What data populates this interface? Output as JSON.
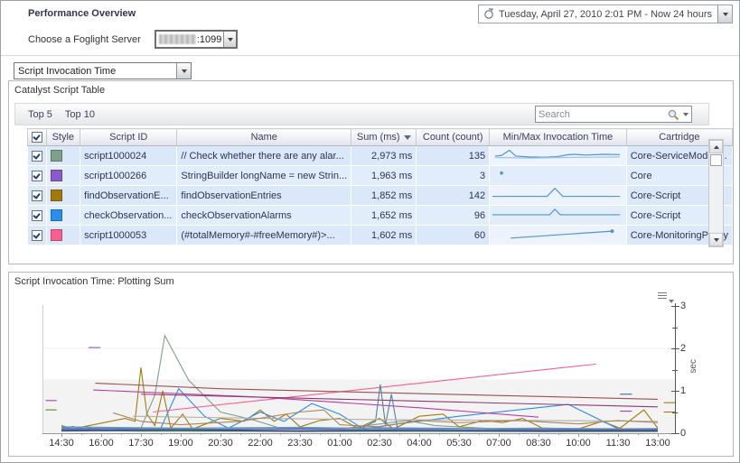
{
  "header": {
    "title": "Performance Overview",
    "time_range": "Tuesday, April 27, 2010 2:01 PM - Now 24 hours"
  },
  "server": {
    "label": "Choose a Foglight Server",
    "value_suffix": ":1099"
  },
  "metric_dropdown": {
    "value": "Script Invocation Time"
  },
  "catalyst": {
    "title": "Catalyst Script Table",
    "tabs": [
      {
        "label": "Top 5"
      },
      {
        "label": "Top 10"
      }
    ],
    "search_placeholder": "Search",
    "columns": [
      "Style",
      "Script ID",
      "Name",
      "Sum (ms)",
      "Count (count)",
      "Min/Max Invocation Time",
      "Cartridge"
    ],
    "sort_column": "Sum (ms)",
    "sort_direction": "descending",
    "spark_color": "#4f94d6",
    "rows": [
      {
        "checked": true,
        "style_color": "#7fa089",
        "script_id": "script1000024",
        "name": "// Check whether there are any alar...",
        "sum": "2,973 ms",
        "count": "135",
        "cartridge": "Core-ServiceModel-...",
        "sparklines": [
          {
            "points": [
              [
                2,
                62
              ],
              [
                7,
                58
              ],
              [
                13,
                22
              ],
              [
                18,
                62
              ],
              [
                28,
                68
              ],
              [
                40,
                70
              ],
              [
                50,
                66
              ],
              [
                57,
                54
              ],
              [
                63,
                50
              ],
              [
                72,
                55
              ],
              [
                85,
                50
              ],
              [
                98,
                52
              ]
            ]
          },
          {
            "color": "#9cc6ea",
            "points": [
              [
                2,
                72
              ],
              [
                30,
                76
              ],
              [
                55,
                72
              ],
              [
                75,
                70
              ],
              [
                98,
                68
              ]
            ]
          }
        ]
      },
      {
        "checked": true,
        "style_color": "#8a5bc8",
        "script_id": "script1000266",
        "name": "StringBuilder longName = new Strin...",
        "sum": "1,963 ms",
        "count": "3",
        "cartridge": "Core",
        "sparklines": [
          {
            "points": [
              [
                7,
                42
              ]
            ]
          }
        ]
      },
      {
        "checked": true,
        "style_color": "#a3790f",
        "script_id": "findObservationE...",
        "name": "findObservationEntries",
        "sum": "1,852 ms",
        "count": "142",
        "cartridge": "Core-Script",
        "sparklines": [
          {
            "points": [
              [
                0,
                66
              ],
              [
                42,
                66
              ],
              [
                48,
                10
              ],
              [
                54,
                66
              ],
              [
                98,
                66
              ]
            ]
          }
        ]
      },
      {
        "checked": true,
        "style_color": "#2a8ceb",
        "script_id": "checkObservation...",
        "name": "checkObservationAlarms",
        "sum": "1,652 ms",
        "count": "96",
        "cartridge": "Core-Script",
        "sparklines": [
          {
            "points": [
              [
                0,
                56
              ],
              [
                44,
                56
              ],
              [
                48,
                18
              ],
              [
                52,
                56
              ],
              [
                98,
                56
              ]
            ]
          }
        ]
      },
      {
        "checked": true,
        "style_color": "#f7608e",
        "script_id": "script1000053",
        "name": "(#totalMemory#-#freeMemory#)>...",
        "sum": "1,602 ms",
        "count": "60",
        "cartridge": "Core-MonitoringPolicy",
        "sparklines": [
          {
            "points": [
              [
                14,
                80
              ],
              [
                92,
                32
              ]
            ],
            "end_dot": true
          }
        ]
      }
    ]
  },
  "chart_panel": {
    "title": "Script Invocation Time: Plotting Sum"
  },
  "chart_data": {
    "type": "line",
    "title": "Script Invocation Time: Plotting Sum",
    "xlabel": "",
    "ylabel": "sec",
    "ylim": [
      0,
      3
    ],
    "y_ticks": [
      0,
      1,
      2,
      3
    ],
    "grid": true,
    "legend_position": "none",
    "threshold_band": {
      "from": 0,
      "to": 1.27,
      "color": "#f3f3f3"
    },
    "x_ticks": [
      "14:30",
      "16:00",
      "17:30",
      "19:00",
      "20:30",
      "22:00",
      "23:30",
      "01:00",
      "02:30",
      "04:00",
      "05:30",
      "07:00",
      "08:30",
      "10:00",
      "11:30",
      "13:00"
    ],
    "series": [
      {
        "name": "script1000024",
        "color": "#7fa089",
        "points": [
          [
            0,
            0.06
          ],
          [
            1,
            0.08
          ],
          [
            2,
            0.12
          ],
          [
            2.35,
            0.9
          ],
          [
            2.6,
            2.3
          ],
          [
            3.2,
            1.25
          ],
          [
            4,
            0.5
          ],
          [
            4.8,
            0.32
          ],
          [
            5.5,
            0.12
          ],
          [
            7,
            0.1
          ],
          [
            8.7,
            0.3
          ],
          [
            9.4,
            0.18
          ],
          [
            11,
            0.1
          ],
          [
            13,
            0.08
          ],
          [
            15,
            0.06
          ]
        ]
      },
      {
        "name": "findObservationEntries",
        "color": "#a3790f",
        "points": [
          [
            0,
            0.05
          ],
          [
            1.6,
            0.35
          ],
          [
            1.85,
            0.28
          ],
          [
            2,
            1.55
          ],
          [
            2.15,
            0.45
          ],
          [
            2.35,
            0.18
          ],
          [
            2.55,
            1.0
          ],
          [
            2.75,
            0.12
          ],
          [
            3.05,
            0.45
          ],
          [
            3.3,
            0.1
          ],
          [
            4,
            0.35
          ],
          [
            4.6,
            0.28
          ],
          [
            5,
            0.55
          ],
          [
            5.35,
            0.28
          ],
          [
            5.65,
            0.45
          ],
          [
            6,
            0.15
          ],
          [
            6.5,
            0.3
          ],
          [
            7,
            0.35
          ],
          [
            7.45,
            0.12
          ],
          [
            8,
            0.35
          ],
          [
            8.35,
            0.1
          ],
          [
            9,
            0.4
          ],
          [
            9.6,
            0.45
          ],
          [
            10,
            0.15
          ],
          [
            10.6,
            0.3
          ],
          [
            11.1,
            0.25
          ],
          [
            11.6,
            0.35
          ],
          [
            12.1,
            0.12
          ],
          [
            13,
            0.1
          ],
          [
            13.6,
            0.28
          ],
          [
            14.05,
            0.12
          ],
          [
            14.65,
            0.55
          ],
          [
            15,
            0.12
          ]
        ]
      },
      {
        "name": "checkObservationAlarms",
        "color": "#2a8ceb",
        "points": [
          [
            0,
            0.1
          ],
          [
            1.2,
            0.12
          ],
          [
            2.5,
            0.12
          ],
          [
            2.95,
            1.05
          ],
          [
            3.6,
            0.4
          ],
          [
            4.2,
            0.12
          ],
          [
            5,
            0.5
          ],
          [
            5.6,
            0.28
          ],
          [
            6.3,
            0.7
          ],
          [
            7,
            0.45
          ],
          [
            7.6,
            0.1
          ],
          [
            8.3,
            0.2
          ],
          [
            10,
            0.4
          ],
          [
            12.75,
            0.68
          ],
          [
            14.1,
            0.06
          ],
          [
            15,
            0.07
          ]
        ]
      },
      {
        "name": "script1000053",
        "color": "#f7608e",
        "points": [
          [
            2.3,
            0.5
          ],
          [
            13.45,
            1.63
          ]
        ]
      },
      {
        "name": "script1000266",
        "color": "#8a5bc8",
        "points": [
          [
            0.68,
            2.02
          ],
          [
            0.98,
            2.02
          ]
        ]
      },
      {
        "name": "other-darkred",
        "color": "#9d4f52",
        "points": [
          [
            0.85,
            1.18
          ],
          [
            4,
            1.05
          ],
          [
            7,
            0.98
          ],
          [
            10.5,
            0.9
          ],
          [
            15,
            0.8
          ]
        ]
      },
      {
        "name": "other-magenta",
        "color": "#bd3a9d",
        "points": [
          [
            0.8,
            1.02
          ],
          [
            5,
            0.85
          ],
          [
            9,
            0.6
          ],
          [
            12,
            0.38
          ]
        ]
      },
      {
        "name": "other-maroon",
        "color": "#8e3a6e",
        "points": [
          [
            2,
            0.92
          ],
          [
            8,
            0.78
          ],
          [
            15,
            0.62
          ]
        ]
      },
      {
        "name": "other-steelblue",
        "color": "#54809e",
        "points": [
          [
            7.5,
            0.1
          ],
          [
            7.9,
            0.28
          ],
          [
            8.02,
            1.15
          ],
          [
            8.15,
            0.2
          ],
          [
            8.3,
            0.92
          ],
          [
            8.45,
            0.12
          ],
          [
            9,
            0.1
          ]
        ]
      },
      {
        "name": "other-gray",
        "color": "#aeaeae",
        "points": [
          [
            1.8,
            0.4
          ],
          [
            5,
            0.35
          ],
          [
            8,
            0.32
          ],
          [
            12,
            0.3
          ],
          [
            15,
            0.28
          ]
        ]
      },
      {
        "name": "other-tan",
        "color": "#ab8455",
        "points": [
          [
            1.3,
            0.48
          ],
          [
            2,
            0.28
          ],
          [
            3,
            0.2
          ],
          [
            4.5,
            0.28
          ],
          [
            6,
            0.5
          ],
          [
            6.6,
            0.55
          ],
          [
            7,
            0.2
          ],
          [
            8,
            0.15
          ],
          [
            9,
            0.3
          ],
          [
            10,
            0.25
          ],
          [
            11.5,
            0.3
          ],
          [
            13,
            0.22
          ],
          [
            14,
            0.3
          ],
          [
            15,
            0.25
          ]
        ]
      },
      {
        "name": "other-red",
        "color": "#c0504d",
        "points": [
          [
            0,
            0.12
          ],
          [
            0.3,
            0.16
          ],
          [
            0.55,
            0.08
          ],
          [
            0.85,
            0.12
          ],
          [
            1.1,
            0.06
          ]
        ]
      },
      {
        "name": "other-green",
        "color": "#4a9a4a",
        "points": [
          [
            0,
            0.18
          ],
          [
            0.3,
            0.1
          ],
          [
            0.6,
            0.16
          ],
          [
            1,
            0.06
          ],
          [
            2,
            0.05
          ],
          [
            15,
            0.04
          ]
        ]
      },
      {
        "name": "other-navy",
        "color": "#35547a",
        "width": 2,
        "points": [
          [
            0,
            0.06
          ],
          [
            3,
            0.08
          ],
          [
            6,
            0.05
          ],
          [
            9,
            0.07
          ],
          [
            12,
            0.05
          ],
          [
            15,
            0.06
          ]
        ]
      },
      {
        "name": "other-royal",
        "color": "#5b7fd4",
        "points": [
          [
            0,
            0.12
          ],
          [
            4,
            0.1
          ],
          [
            8,
            0.13
          ],
          [
            12,
            0.1
          ],
          [
            15,
            0.11
          ]
        ]
      },
      {
        "name": "other-teal",
        "color": "#5aa0b0",
        "points": [
          [
            0,
            0.15
          ],
          [
            3,
            0.12
          ],
          [
            6,
            0.14
          ],
          [
            9,
            0.1
          ],
          [
            12,
            0.12
          ],
          [
            15,
            0.1
          ]
        ]
      },
      {
        "name": "other-violet",
        "color": "#7a6ab8",
        "points": [
          [
            0,
            0.09
          ],
          [
            5,
            0.1
          ],
          [
            10,
            0.08
          ],
          [
            15,
            0.09
          ]
        ]
      },
      {
        "name": "dash-magenta-left",
        "color": "#bd3a9d",
        "points": [
          [
            -0.4,
            0.77
          ],
          [
            -0.12,
            0.77
          ]
        ]
      },
      {
        "name": "dash-olive-left",
        "color": "#7a7a20",
        "points": [
          [
            -0.4,
            0.55
          ],
          [
            -0.12,
            0.55
          ]
        ]
      },
      {
        "name": "dash-blue-right",
        "color": "#2a6fb8",
        "points": [
          [
            14.05,
            0.92
          ],
          [
            14.35,
            0.92
          ]
        ]
      },
      {
        "name": "dash-magenta-right",
        "color": "#bd3a9d",
        "points": [
          [
            14.05,
            0.52
          ],
          [
            14.35,
            0.52
          ]
        ]
      },
      {
        "name": "dash-gold-right-1",
        "color": "#a3790f",
        "points": [
          [
            15.15,
            0.72
          ],
          [
            15.5,
            0.72
          ]
        ]
      },
      {
        "name": "dash-gold-right-2",
        "color": "#a3790f",
        "points": [
          [
            15.15,
            0.5
          ],
          [
            15.5,
            0.5
          ]
        ]
      }
    ]
  }
}
